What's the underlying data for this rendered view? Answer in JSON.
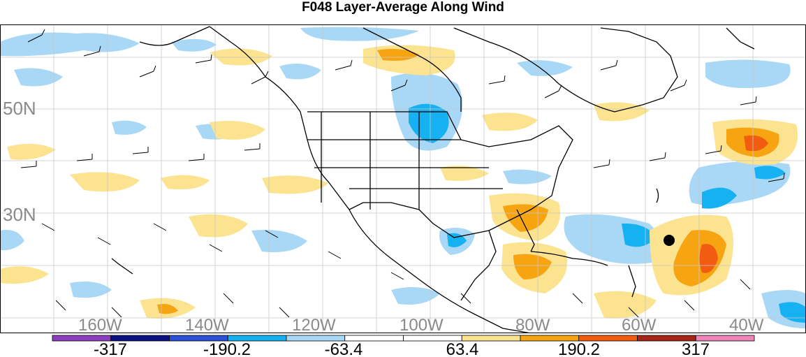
{
  "title": "F048 Layer-Average Along Wind",
  "map": {
    "lat_labels": [
      "50N",
      "30N"
    ],
    "lon_labels": [
      "160W",
      "140W",
      "120W",
      "100W",
      "80W",
      "60W",
      "40W"
    ]
  },
  "colorbar": {
    "colors": [
      "#8b3fbf",
      "#0a107f",
      "#2d4fd6",
      "#16b1f0",
      "#a8d8f5",
      "#ffffff",
      "#ffffff",
      "#fbe38f",
      "#f7a412",
      "#f25c10",
      "#a32517",
      "#ef86b9"
    ],
    "labels": [
      "-317",
      "-190.2",
      "-63.4",
      "63.4",
      "190.2",
      "317"
    ]
  },
  "marker": {
    "type": "filled-circle",
    "color": "#000000"
  }
}
